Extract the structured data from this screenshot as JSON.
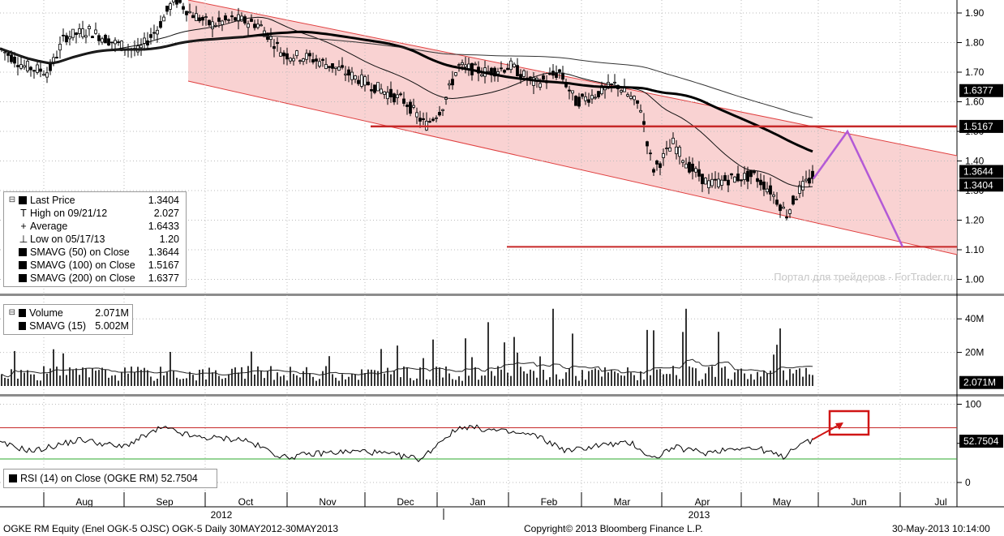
{
  "chart_data": [
    {
      "type": "candlestick",
      "ticker": "OGKE RM Equity (Enel OGK-5 OJSC) OGK-5",
      "y_ticks": [
        "1.90",
        "1.80",
        "1.70",
        "1.60",
        "1.50",
        "1.40",
        "1.30",
        "1.20",
        "1.10",
        "1.00"
      ],
      "ylim": [
        0.97,
        1.95
      ],
      "x_months": [
        "Aug",
        "Sep",
        "Oct",
        "Nov",
        "Dec",
        "Jan",
        "Feb",
        "Mar",
        "Apr",
        "May",
        "Jun",
        "Jul"
      ],
      "x_years": [
        "2012",
        "2013"
      ],
      "price_tags": [
        {
          "label": "1.6377",
          "value": 1.6377
        },
        {
          "label": "1.5167",
          "value": 1.5167
        },
        {
          "label": "1.3644",
          "value": 1.3644
        },
        {
          "label": "1.3404",
          "value": 1.3404
        }
      ],
      "legend": [
        {
          "glyph": "sq",
          "label": "Last Price",
          "value": "1.3404"
        },
        {
          "glyph": "T",
          "label": "High on 09/21/12",
          "value": "2.027"
        },
        {
          "glyph": "+",
          "label": "Average",
          "value": "1.6433"
        },
        {
          "glyph": "⊥",
          "label": "Low on 05/17/13",
          "value": "1.20"
        },
        {
          "glyph": "sq",
          "label": "SMAVG (50) on Close",
          "value": "1.3644"
        },
        {
          "glyph": "sq",
          "label": "SMAVG (100) on Close",
          "value": "1.5167"
        },
        {
          "glyph": "sq",
          "label": "SMAVG (200) on Close",
          "value": "1.6377"
        }
      ],
      "watermark": "Портал для трейдеров - ForTrader.ru",
      "annotation_levels": {
        "resistance": 1.5167,
        "support": 1.11
      },
      "colors": {
        "channel_fill": "#f8caca",
        "channel_line": "#e04040",
        "level_line": "#c62828",
        "arrow": "#b35ad6"
      }
    },
    {
      "type": "bar",
      "panel": "Volume",
      "y_ticks": [
        "40M",
        "20M"
      ],
      "ylim": [
        0,
        50
      ],
      "legend": [
        {
          "label": "Volume",
          "value": "2.071M"
        },
        {
          "label": "SMAVG (15)",
          "value": "5.002M"
        }
      ],
      "last_tag": "2.071M"
    },
    {
      "type": "line",
      "panel": "RSI",
      "y_ticks": [
        "100",
        "50",
        "0"
      ],
      "ylim": [
        0,
        100
      ],
      "overbought": 70,
      "oversold": 30,
      "legend_label": "RSI (14) on Close (OGKE RM)",
      "legend_value": "52.7504",
      "last_tag": "52.7504"
    }
  ],
  "footer": {
    "left": "OGKE RM Equity (Enel OGK-5 OJSC) OGK-5  Daily 30MAY2012-30MAY2013",
    "center": "Copyright© 2013 Bloomberg Finance L.P.",
    "right": "30-May-2013 10:14:00"
  }
}
